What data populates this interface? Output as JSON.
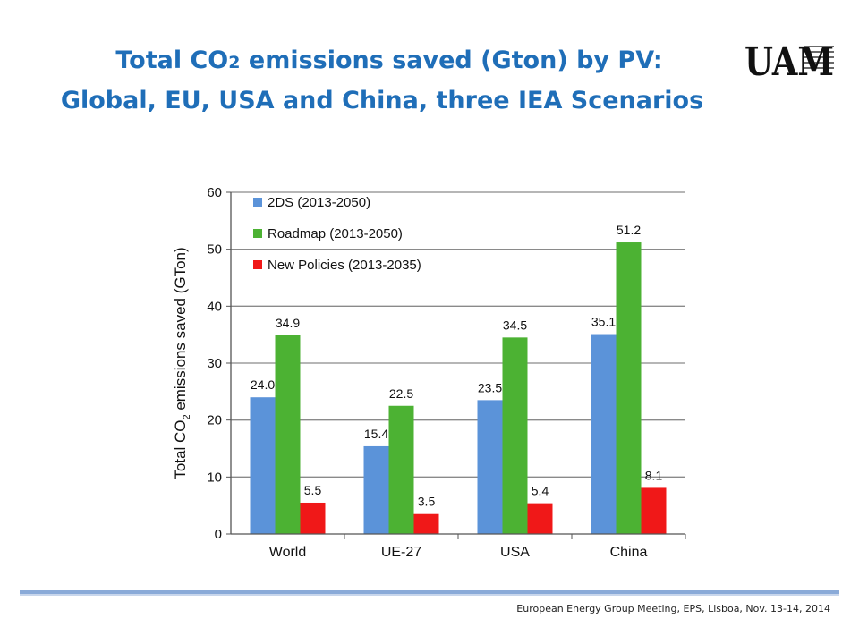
{
  "slide": {
    "title_line1_pre": "Total CO",
    "title_line1_sub": "2",
    "title_line1_post": " emissions saved (Gton) by PV:",
    "title_line2": "Global, EU, USA and China, three IEA Scenarios",
    "logo_text": "UAM",
    "footer": "European Energy Group Meeting, EPS, Lisboa, Nov. 13-14, 2014"
  },
  "chart_data": {
    "type": "bar",
    "categories": [
      "World",
      "UE-27",
      "USA",
      "China"
    ],
    "series": [
      {
        "name": "2DS (2013-2050)",
        "color": "#5b93d9",
        "values": [
          24.0,
          15.4,
          23.5,
          35.1
        ],
        "labels": [
          "24.0",
          "15.4",
          "23.5",
          "35.1"
        ]
      },
      {
        "name": "Roadmap (2013-2050)",
        "color": "#4cb233",
        "values": [
          34.9,
          22.5,
          34.5,
          51.2
        ],
        "labels": [
          "34.9",
          "22.5",
          "34.5",
          "51.2"
        ]
      },
      {
        "name": "New Policies (2013-2035)",
        "color": "#f01818",
        "values": [
          5.5,
          3.5,
          5.4,
          8.1
        ],
        "labels": [
          "5.5",
          "3.5",
          "5.4",
          "8.1"
        ]
      }
    ],
    "ylabel_pre": "Total CO",
    "ylabel_sub": "2",
    "ylabel_post": " emissions saved (GTon)",
    "ylim": [
      0,
      60
    ],
    "yticks": [
      0,
      10,
      20,
      30,
      40,
      50,
      60
    ],
    "grid": true,
    "legend_position": "top-left"
  }
}
